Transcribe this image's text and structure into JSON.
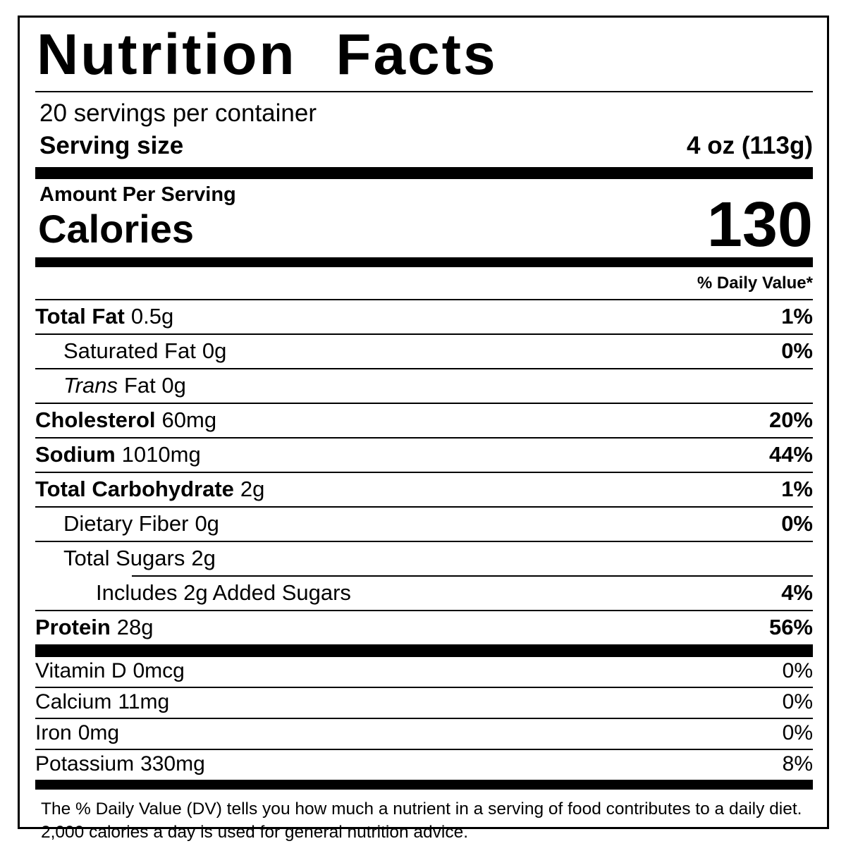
{
  "label": {
    "title": "Nutrition Facts",
    "servings_per_container": "20 servings per container",
    "serving_size_label": "Serving size",
    "serving_size_value": "4 oz (113g)",
    "amount_per_serving": "Amount Per Serving",
    "calories_label": "Calories",
    "calories_value": "130",
    "daily_value_header": "% Daily Value*",
    "nutrients": [
      {
        "name": "Total Fat",
        "amount": "0.5g",
        "dv": "1%"
      },
      {
        "name": "Saturated Fat",
        "amount": "0g",
        "dv": "0%"
      },
      {
        "name": "Trans",
        "amount": "Fat 0g",
        "dv": ""
      },
      {
        "name": "Cholesterol",
        "amount": "60mg",
        "dv": "20%"
      },
      {
        "name": "Sodium",
        "amount": "1010mg",
        "dv": "44%"
      },
      {
        "name": "Total Carbohydrate",
        "amount": "2g",
        "dv": "1%"
      },
      {
        "name": "Dietary Fiber",
        "amount": "0g",
        "dv": "0%"
      },
      {
        "name": "Total Sugars",
        "amount": "2g",
        "dv": ""
      },
      {
        "name": "Includes 2g Added Sugars",
        "amount": "",
        "dv": "4%"
      },
      {
        "name": "Protein",
        "amount": "28g",
        "dv": "56%"
      }
    ],
    "micronutrients": [
      {
        "name": "Vitamin D",
        "amount": "0mcg",
        "dv": "0%"
      },
      {
        "name": "Calcium",
        "amount": "11mg",
        "dv": "0%"
      },
      {
        "name": "Iron",
        "amount": "0mg",
        "dv": "0%"
      },
      {
        "name": "Potassium",
        "amount": "330mg",
        "dv": "8%"
      }
    ],
    "footnote_line1": "The % Daily Value (DV) tells you how much a nutrient in a serving of food contributes to a daily diet.",
    "footnote_line2": "2,000 calories a day is used for general nutrition advice."
  },
  "colors": {
    "text": "#000000",
    "background": "#ffffff",
    "border": "#000000"
  }
}
